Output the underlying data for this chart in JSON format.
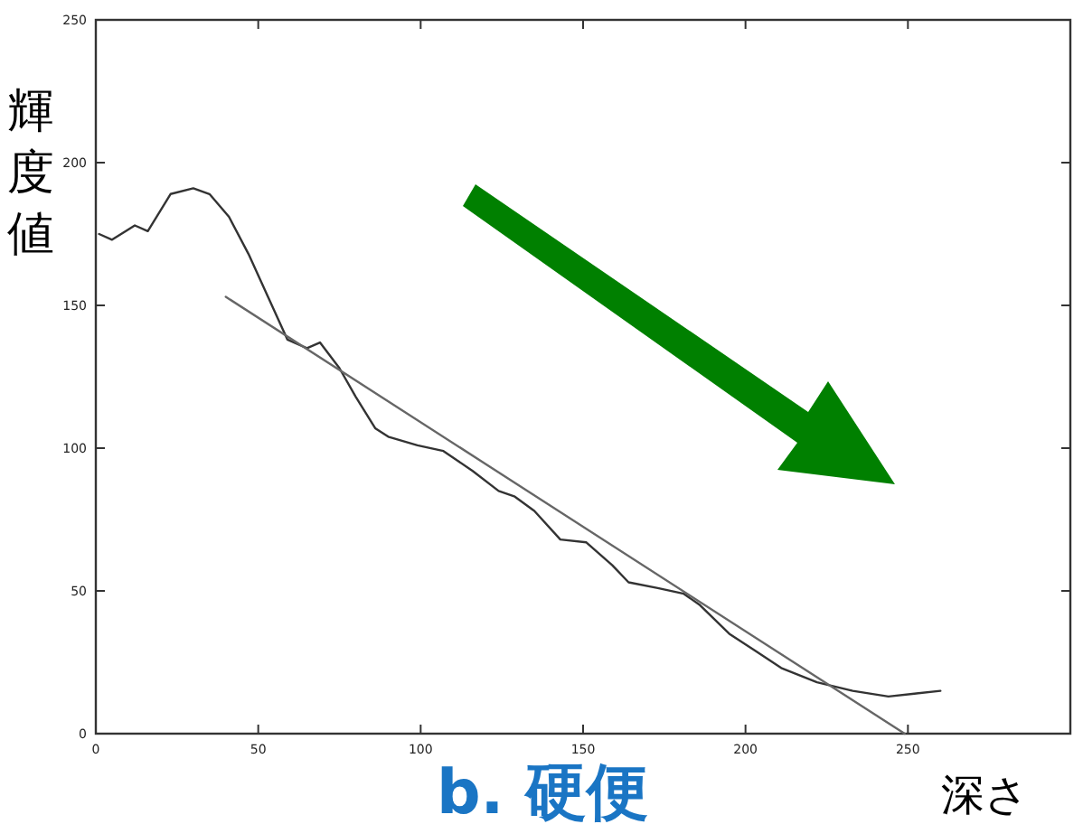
{
  "chart_data": {
    "type": "line",
    "title": "b. 硬便",
    "xlabel": "深さ",
    "ylabel": "輝度値",
    "xlim": [
      0,
      300
    ],
    "ylim": [
      0,
      250
    ],
    "xticks": [
      0,
      50,
      100,
      150,
      200,
      250
    ],
    "yticks": [
      0,
      50,
      100,
      150,
      200,
      250
    ],
    "series": [
      {
        "color": "#333333",
        "x": [
          1,
          5,
          12,
          16,
          23,
          30,
          35,
          41,
          47,
          53,
          59,
          65,
          69,
          75,
          80,
          86,
          90,
          99,
          107,
          116,
          124,
          129,
          135,
          143,
          151,
          159,
          164,
          173,
          181,
          186,
          195,
          203,
          211,
          222,
          233,
          244,
          252,
          260
        ],
        "values": [
          175,
          173,
          178,
          176,
          189,
          191,
          189,
          181,
          168,
          153,
          138,
          135,
          137,
          128,
          118,
          107,
          104,
          101,
          99,
          92,
          85,
          83,
          78,
          68,
          67,
          59,
          53,
          51,
          49,
          45,
          35,
          29,
          23,
          18,
          15,
          13,
          14,
          15
        ]
      },
      {
        "color": "#666666",
        "x": [
          40,
          249
        ],
        "values": [
          153,
          0
        ]
      }
    ]
  }
}
